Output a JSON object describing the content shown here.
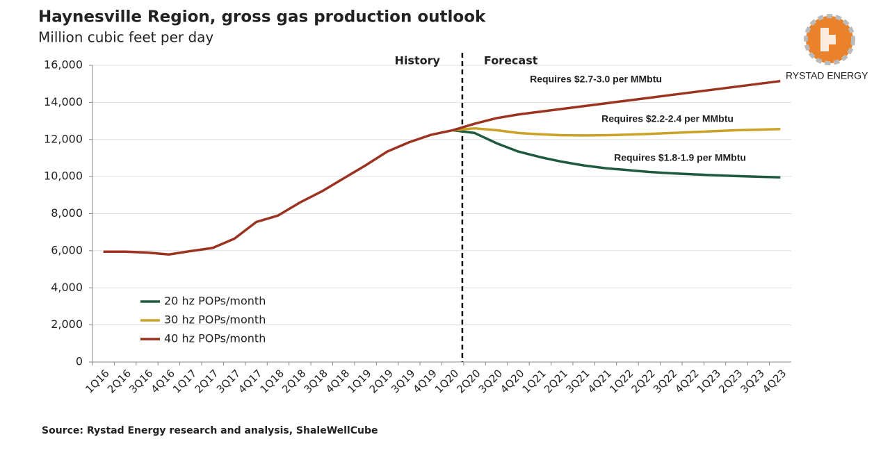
{
  "chart_data": {
    "type": "line",
    "title": "Haynesville Region, gross gas production outlook",
    "subtitle": "Million cubic feet per day",
    "source": "Source: Rystad Energy research and analysis, ShaleWellCube",
    "brand": "RYSTAD ENERGY",
    "history_label": "History",
    "forecast_label": "Forecast",
    "categories": [
      "1Q16",
      "2Q16",
      "3Q16",
      "4Q16",
      "1Q17",
      "2Q17",
      "3Q17",
      "4Q17",
      "1Q18",
      "2Q18",
      "3Q18",
      "4Q18",
      "1Q19",
      "2Q19",
      "3Q19",
      "4Q19",
      "1Q20",
      "2Q20",
      "3Q20",
      "4Q20",
      "1Q21",
      "2Q21",
      "3Q21",
      "4Q21",
      "1Q22",
      "2Q22",
      "3Q22",
      "4Q22",
      "1Q23",
      "2Q23",
      "3Q23",
      "4Q23"
    ],
    "series": [
      {
        "name": "20 hz POPs/month",
        "color": "#1f5a3f",
        "annotation": "Requires $1.8-1.9 per MMbtu",
        "values": [
          null,
          null,
          null,
          null,
          null,
          null,
          null,
          null,
          null,
          null,
          null,
          null,
          null,
          null,
          null,
          null,
          12500,
          12350,
          11800,
          11350,
          11050,
          10800,
          10600,
          10450,
          10350,
          10250,
          10180,
          10120,
          10070,
          10030,
          9990,
          9960
        ]
      },
      {
        "name": "30 hz POPs/month",
        "color": "#c9a227",
        "annotation": "Requires $2.2-2.4 per MMbtu",
        "values": [
          null,
          null,
          null,
          null,
          null,
          null,
          null,
          null,
          null,
          null,
          null,
          null,
          null,
          null,
          null,
          null,
          12500,
          12600,
          12500,
          12350,
          12280,
          12230,
          12220,
          12230,
          12260,
          12300,
          12350,
          12400,
          12450,
          12500,
          12530,
          12560
        ]
      },
      {
        "name": "40 hz POPs/month",
        "color": "#9b3320",
        "annotation": "Requires $2.7-3.0 per MMbtu",
        "values": [
          5950,
          5950,
          5900,
          5800,
          5980,
          6150,
          6650,
          7550,
          7900,
          8600,
          9200,
          9900,
          10600,
          11350,
          11850,
          12250,
          12500,
          12850,
          13150,
          13350,
          13500,
          13650,
          13800,
          13950,
          14100,
          14250,
          14400,
          14550,
          14700,
          14850,
          15000,
          15150
        ]
      }
    ],
    "ylim": [
      0,
      16000
    ],
    "yticks": [
      0,
      {
        "value": 2000,
        "label": "2,000"
      },
      {
        "value": 4000,
        "label": "4,000"
      },
      {
        "value": 6000,
        "label": "6,000"
      },
      {
        "value": 8000,
        "label": "8,000"
      },
      {
        "value": 10000,
        "label": "10,000"
      },
      {
        "value": 12000,
        "label": "12,000"
      },
      {
        "value": 14000,
        "label": "14,000"
      },
      {
        "value": 16000,
        "label": "16,000"
      }
    ],
    "grid": true
  }
}
